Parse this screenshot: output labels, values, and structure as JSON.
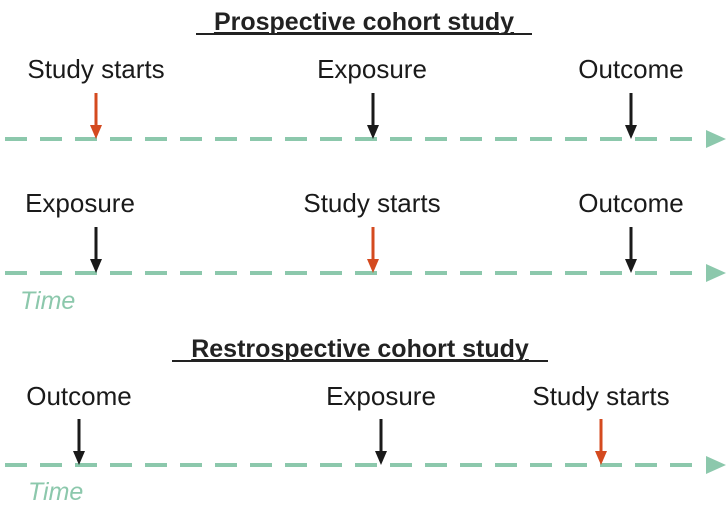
{
  "colors": {
    "timeline": "#8cc8ac",
    "black_arrow": "#1a1a1a",
    "red_arrow": "#d44a1f",
    "time_label": "#8cc8ac"
  },
  "prospective": {
    "title": "Prospective cohort study",
    "timeline1": {
      "events": [
        {
          "label": "Study starts",
          "arrow": "red"
        },
        {
          "label": "Exposure",
          "arrow": "black"
        },
        {
          "label": "Outcome",
          "arrow": "black"
        }
      ]
    },
    "timeline2": {
      "events": [
        {
          "label": "Exposure",
          "arrow": "black"
        },
        {
          "label": "Study starts",
          "arrow": "red"
        },
        {
          "label": "Outcome",
          "arrow": "black"
        }
      ],
      "time_label": "Time"
    }
  },
  "retrospective": {
    "title": "Restrospective cohort study",
    "timeline": {
      "events": [
        {
          "label": "Outcome",
          "arrow": "black"
        },
        {
          "label": "Exposure",
          "arrow": "black"
        },
        {
          "label": "Study starts",
          "arrow": "red"
        }
      ],
      "time_label": "Time"
    }
  }
}
